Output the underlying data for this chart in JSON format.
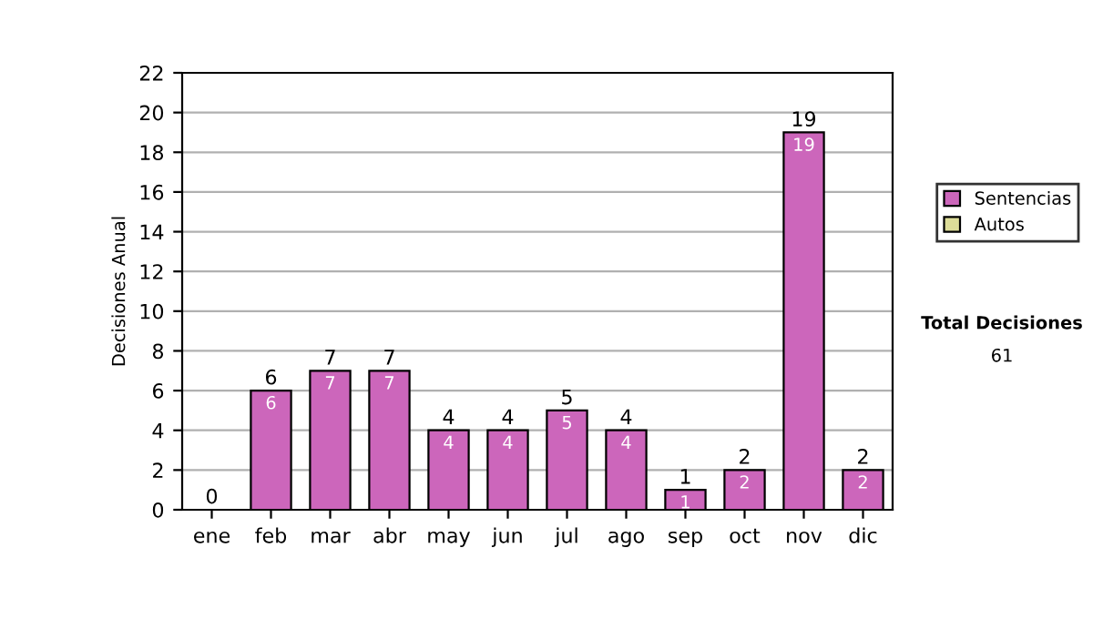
{
  "chart_data": {
    "type": "bar",
    "ylabel": "Decisiones Anual",
    "categories": [
      "ene",
      "feb",
      "mar",
      "abr",
      "may",
      "jun",
      "jul",
      "ago",
      "sep",
      "oct",
      "nov",
      "dic"
    ],
    "stacked": true,
    "series": [
      {
        "name": "Sentencias",
        "color": "#cc66bb",
        "values": [
          0,
          6,
          7,
          7,
          4,
          4,
          5,
          4,
          1,
          2,
          19,
          2
        ],
        "value_labels": [
          null,
          "6",
          "7",
          "7",
          "4",
          "4",
          "5",
          "4",
          "1",
          "2",
          "19",
          "2"
        ]
      },
      {
        "name": "Autos",
        "color": "#dddd99",
        "values": [
          0,
          0,
          0,
          0,
          0,
          0,
          0,
          0,
          0,
          0,
          0,
          0
        ]
      }
    ],
    "totals": [
      "0",
      "6",
      "7",
      "7",
      "4",
      "4",
      "5",
      "4",
      "1",
      "2",
      "19",
      "2"
    ],
    "ylim": [
      0,
      22
    ],
    "yticks": [
      0,
      2,
      4,
      6,
      8,
      10,
      12,
      14,
      16,
      18,
      20,
      22
    ],
    "grid": "y",
    "legend": "right",
    "annotations": [
      "Total Decisiones",
      "61"
    ]
  }
}
